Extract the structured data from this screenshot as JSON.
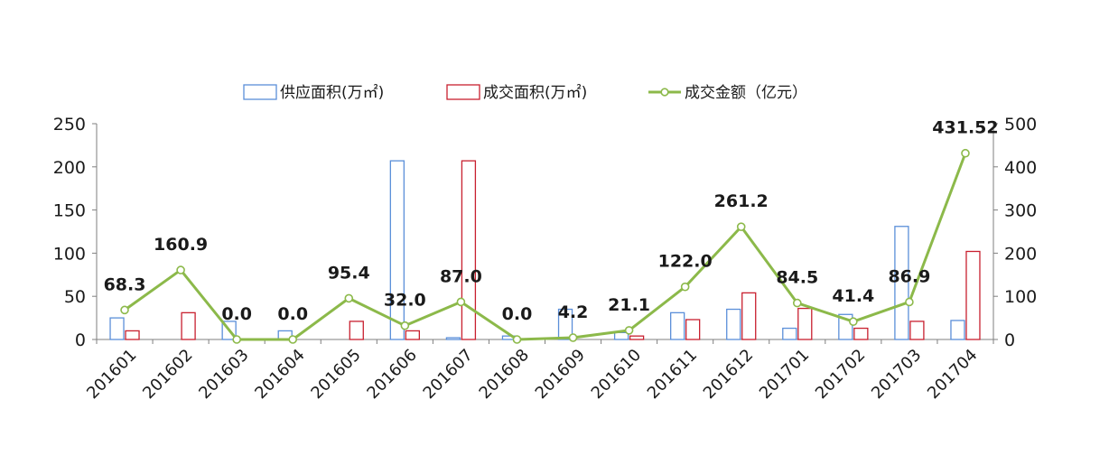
{
  "chart_data": {
    "type": "bar",
    "categories": [
      "201601",
      "201602",
      "201603",
      "201604",
      "201605",
      "201606",
      "201607",
      "201608",
      "201609",
      "201610",
      "201611",
      "201612",
      "201701",
      "201702",
      "201703",
      "201704"
    ],
    "series": [
      {
        "name": "供应面积(万㎡)",
        "type": "bar",
        "axis": "left",
        "color": "#5b8fd9",
        "values": [
          25,
          0,
          21,
          10,
          0,
          207,
          2,
          4,
          35,
          8,
          31,
          35,
          13,
          29,
          131,
          22
        ]
      },
      {
        "name": "成交面积(万㎡)",
        "type": "bar",
        "axis": "right_scale_left",
        "color": "#c8202f",
        "values": [
          10,
          31,
          0,
          0,
          21,
          10,
          207,
          0,
          0,
          4,
          23,
          54,
          36,
          13,
          21,
          102
        ]
      },
      {
        "name": "成交金额（亿元）",
        "type": "line",
        "axis": "right",
        "color": "#8cb94a",
        "values": [
          68.3,
          160.9,
          0.0,
          0.0,
          95.4,
          32.0,
          87.0,
          0.0,
          4.2,
          21.1,
          122.0,
          261.2,
          84.5,
          41.4,
          86.9,
          431.52
        ],
        "labels": [
          "68.3",
          "160.9",
          "0.0",
          "0.0",
          "95.4",
          "32.0",
          "87.0",
          "0.0",
          "4.2",
          "21.1",
          "122.0",
          "261.2",
          "84.5",
          "41.4",
          "86.9",
          "431.52"
        ]
      }
    ],
    "y_left": {
      "min": 0,
      "max": 250,
      "ticks": [
        "0",
        "50",
        "100",
        "150",
        "200",
        "250"
      ]
    },
    "y_right": {
      "min": 0,
      "max": 500,
      "ticks": [
        "0",
        "100",
        "200",
        "300",
        "400",
        "500"
      ]
    },
    "legend_position": "top-center",
    "grid": false
  }
}
